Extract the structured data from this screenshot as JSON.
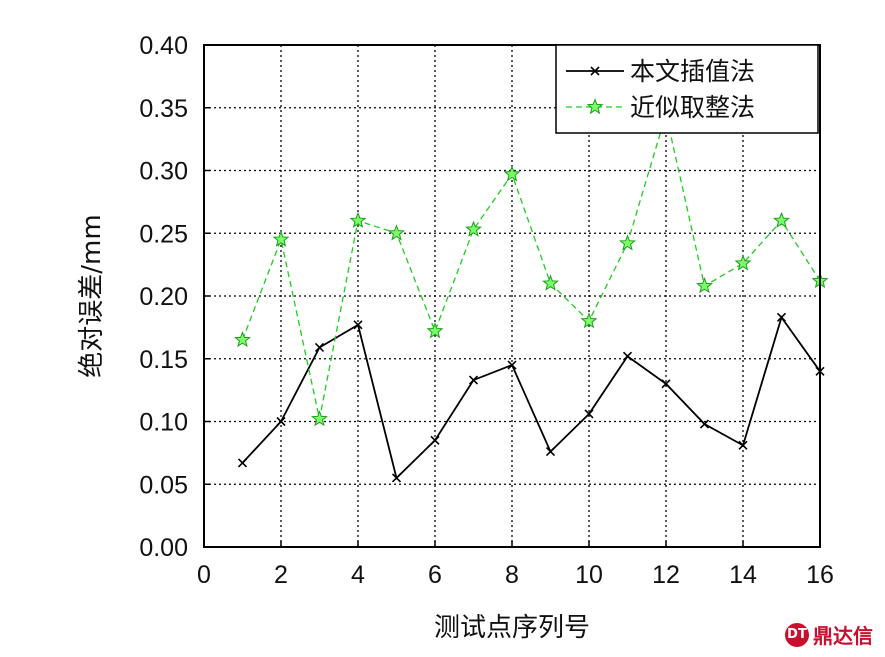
{
  "chart_data": {
    "type": "line",
    "xlabel": "测试点序列号",
    "ylabel": "绝对误差/mm",
    "xlim": [
      0,
      16
    ],
    "ylim": [
      0,
      0.4
    ],
    "x_ticks": [
      "0",
      "2",
      "4",
      "6",
      "8",
      "10",
      "12",
      "14",
      "16"
    ],
    "y_ticks": [
      "0.00",
      "0.05",
      "0.10",
      "0.15",
      "0.20",
      "0.25",
      "0.30",
      "0.35",
      "0.40"
    ],
    "grid": true,
    "legend_position": "top-right",
    "x": [
      1,
      2,
      3,
      4,
      5,
      6,
      7,
      8,
      9,
      10,
      11,
      12,
      13,
      14,
      15,
      16
    ],
    "series": [
      {
        "name": "本文插值法",
        "color": "#000000",
        "line_style": "solid",
        "marker": "x",
        "values": [
          0.067,
          0.1,
          0.159,
          0.177,
          0.055,
          0.085,
          0.133,
          0.145,
          0.076,
          0.106,
          0.152,
          0.13,
          0.098,
          0.081,
          0.183,
          0.14
        ]
      },
      {
        "name": "近似取整法",
        "color": "#22cc22",
        "line_style": "dashed",
        "marker": "star",
        "values": [
          0.165,
          0.245,
          0.102,
          0.26,
          0.25,
          0.172,
          0.253,
          0.297,
          0.21,
          0.18,
          0.242,
          0.345,
          0.208,
          0.226,
          0.26,
          0.212
        ]
      }
    ]
  },
  "watermark": {
    "logo": "DT",
    "text": "鼎达信"
  }
}
